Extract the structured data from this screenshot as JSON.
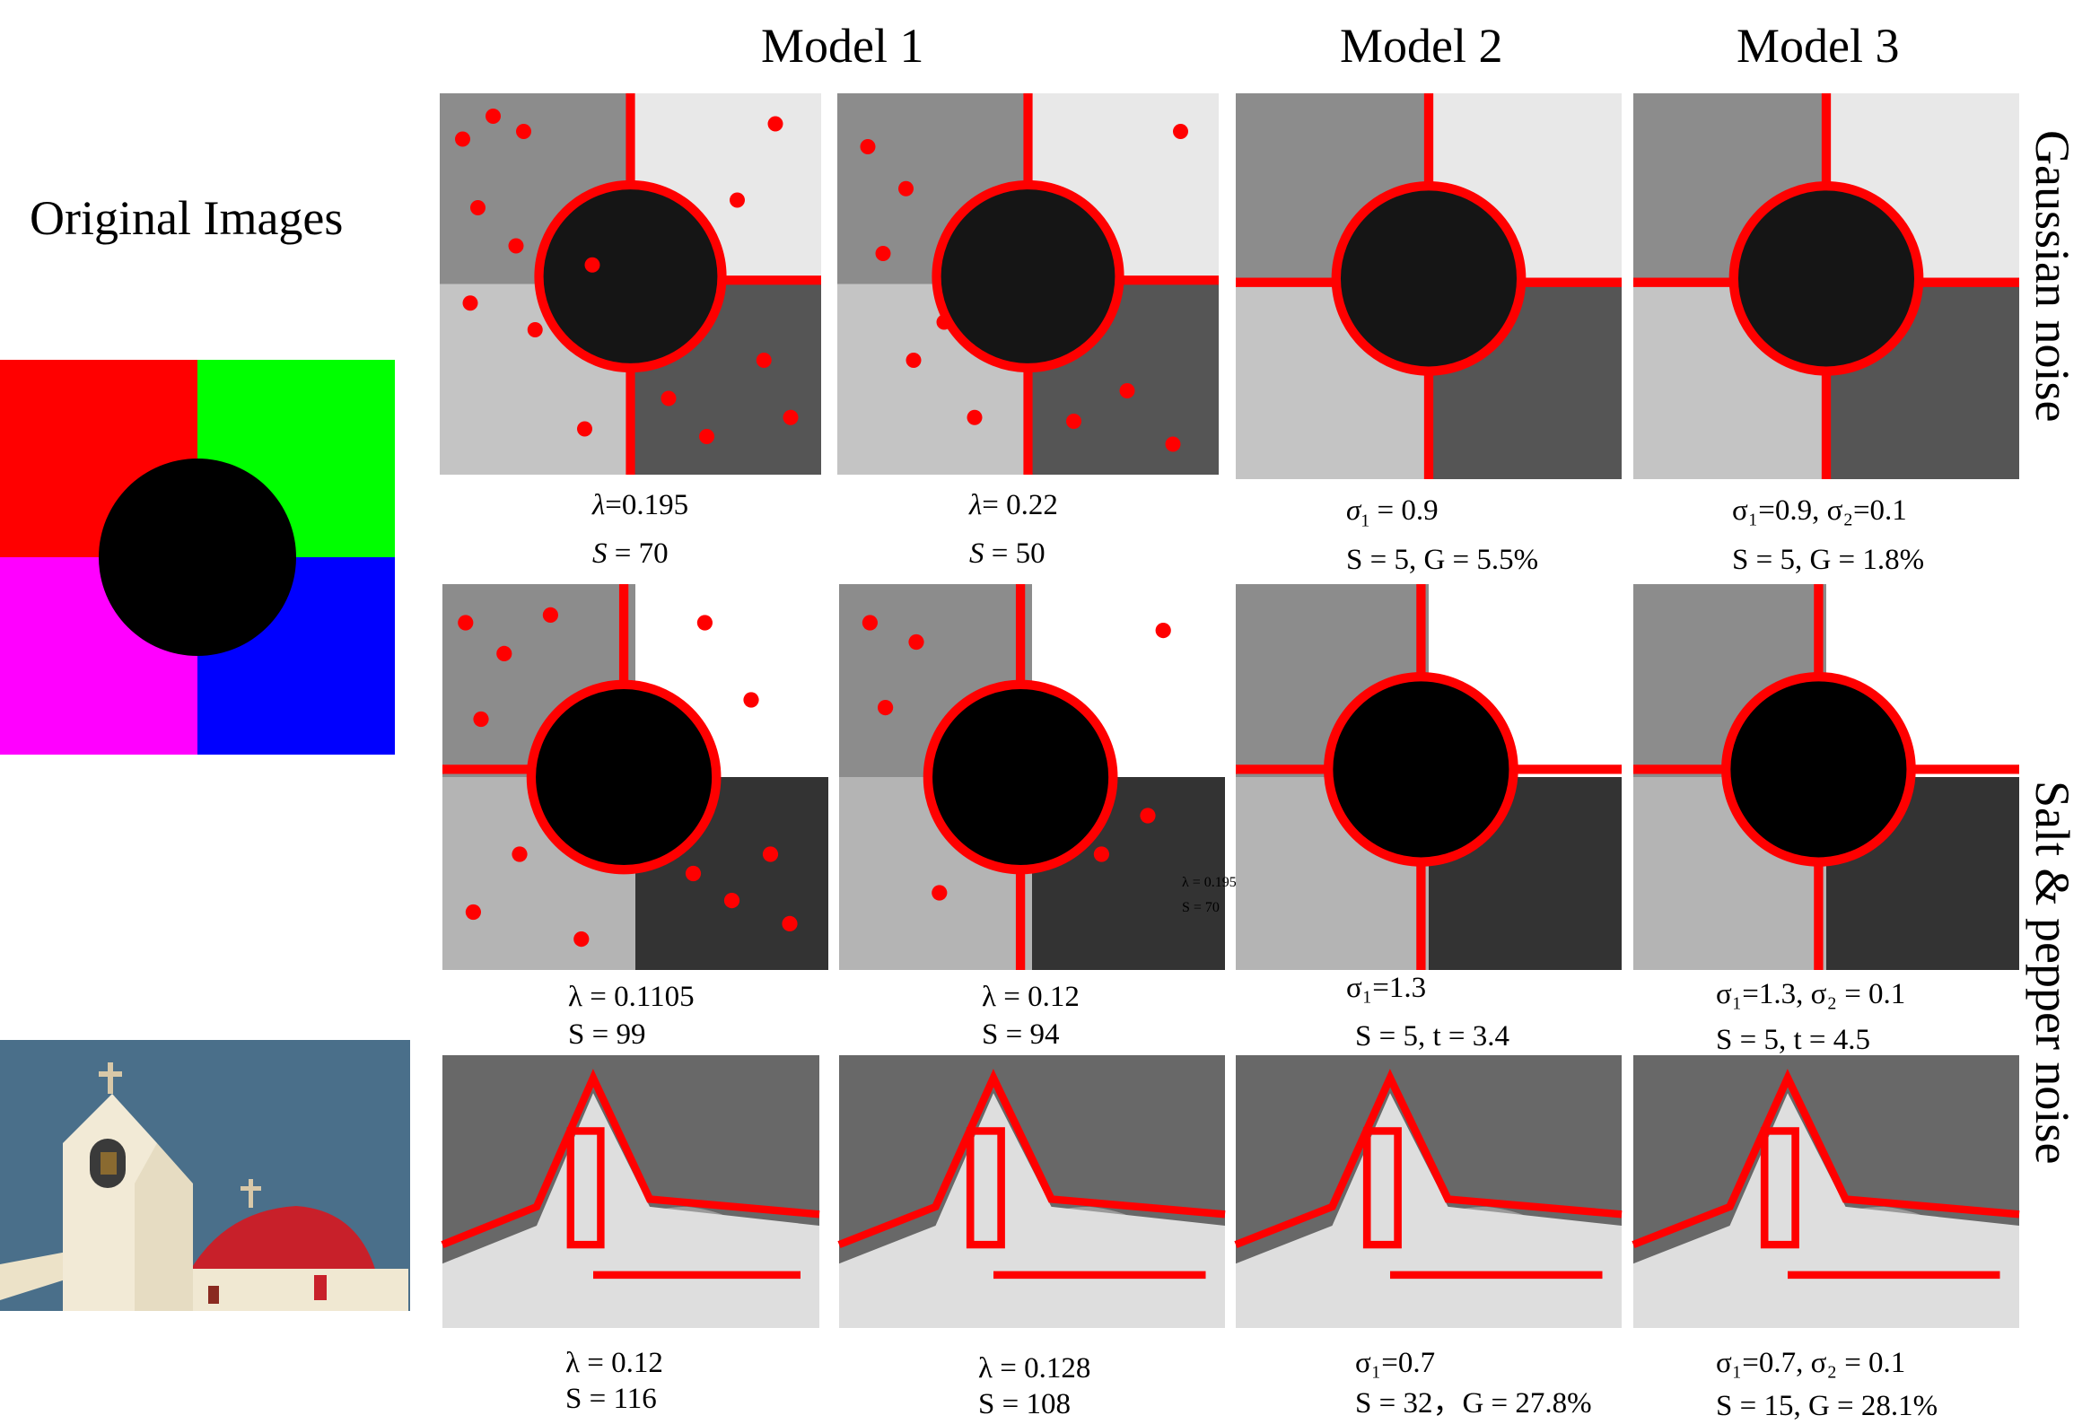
{
  "headers": {
    "model1": "Model 1",
    "model2": "Model 2",
    "model3": "Model  3",
    "original": "Original Images"
  },
  "side_labels": {
    "row1": "Gaussian noise",
    "row2": "Salt & pepper noise"
  },
  "colors": {
    "contour": "#ff0000",
    "quad_red": "#ff0000",
    "quad_green": "#00ff00",
    "quad_magenta": "#ff00ff",
    "quad_blue": "#0000ff",
    "sky": "#4a6f8a",
    "dome": "#c8202a"
  },
  "captions": {
    "r1": {
      "c1": {
        "l1_sym": "λ",
        "l1_val": "=0.195",
        "l2_sym": "S",
        "l2_val": " = 70"
      },
      "c2": {
        "l1_sym": "λ",
        "l1_val": "= 0.22",
        "l2_sym": "S",
        "l2_val": " = 50"
      },
      "c3": {
        "l1_sym": "σ",
        "l1_sub": "1",
        "l1_val": " = 0.9",
        "l2": "S = 5, G = 5.5%"
      },
      "c4": {
        "l1": "σ₁=0.9, σ₂=0.1",
        "l2": "S = 5, G = 1.8%"
      }
    },
    "r2": {
      "c1": {
        "l1": "λ = 0.1105",
        "l2": "S = 99"
      },
      "c2": {
        "l1": "λ = 0.12",
        "l2": "S = 94"
      },
      "c3": {
        "l1": "σ₁=1.3",
        "l2": "S = 5, t = 3.4"
      },
      "c4": {
        "l1": "σ₁=1.3, σ₂ = 0.1",
        "l2": "S = 5, t = 4.5"
      },
      "overlay_l1": "λ = 0.195",
      "overlay_l2": "S = 70"
    },
    "r3": {
      "c1": {
        "l1": "λ = 0.12",
        "l2": "S = 116"
      },
      "c2": {
        "l1": "λ = 0.128",
        "l2": "S = 108"
      },
      "c3": {
        "l1": "σ₁=0.7",
        "l2": "S = 32，G = 27.8%"
      },
      "c4": {
        "l1": "σ₁=0.7, σ₂ = 0.1",
        "l2": "S = 15, G = 28.1%"
      }
    }
  }
}
